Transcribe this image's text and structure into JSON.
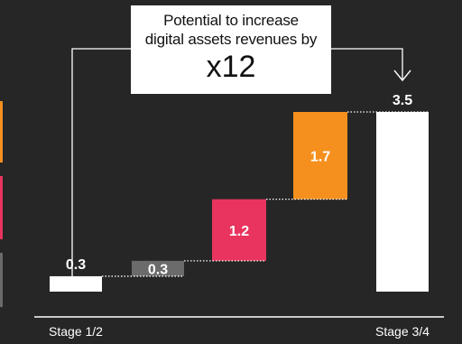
{
  "callout": {
    "line1": "Potential to increase",
    "line2": "digital assets revenues by",
    "multiplier": "x12"
  },
  "chart_data": {
    "type": "bar",
    "subtype": "waterfall",
    "categories": [
      "Stage 1/2",
      "",
      "",
      "",
      "Stage 3/4"
    ],
    "values": [
      0.3,
      0.3,
      1.2,
      1.7,
      3.5
    ],
    "labels": [
      "0.3",
      "0.3",
      "1.2",
      "1.7",
      "3.5"
    ],
    "kinds": [
      "total",
      "step",
      "step",
      "step",
      "total"
    ],
    "colors": [
      "#ffffff",
      "#6b6b6b",
      "#e8345e",
      "#f5901f",
      "#ffffff"
    ],
    "label_colors": [
      "#ffffff",
      "#ffffff",
      "#ffffff",
      "#ffffff",
      "#ffffff"
    ],
    "tick_labels": [
      "Stage 1/2",
      "Stage 3/4"
    ],
    "ylim": [
      0,
      3.5
    ],
    "grid": false,
    "legend": "none"
  },
  "colors": {
    "background": "#262626",
    "connector": "#ffffff",
    "edge_swatches": [
      "#f5901f",
      "#e8345e",
      "#6b6b6b"
    ]
  }
}
